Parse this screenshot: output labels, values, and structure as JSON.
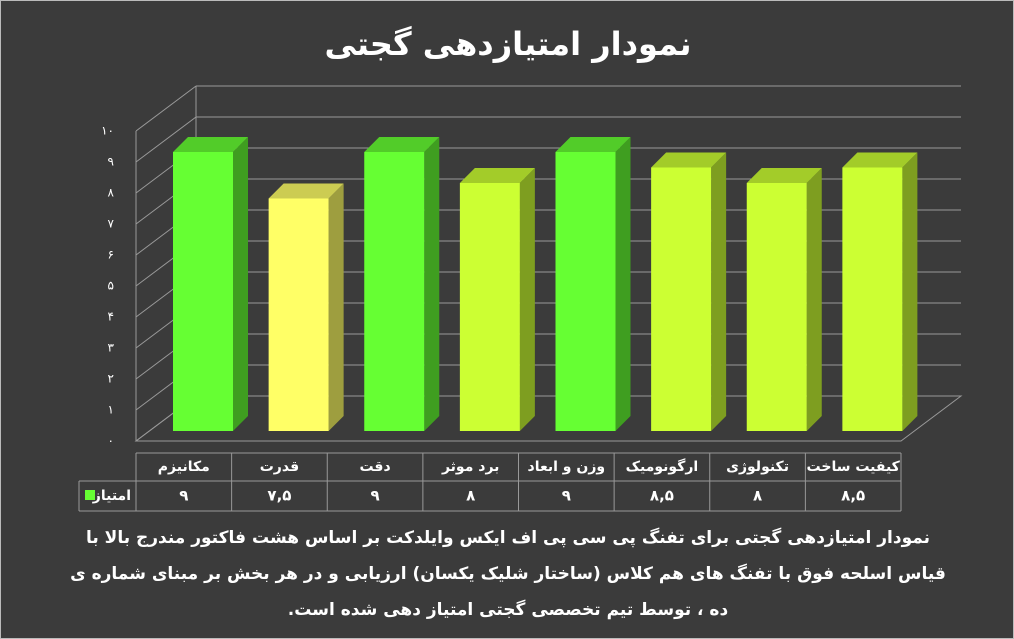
{
  "chart_data": {
    "type": "bar3d",
    "title": "نمودار امتیازدهی گجتی",
    "categories": [
      "مکانیزم",
      "قدرت",
      "دقت",
      "برد موثر",
      "وزن و ابعاد",
      "ارگونومیک",
      "تکنولوژی",
      "کیفیت ساخت"
    ],
    "series": [
      {
        "name": "امتیاز",
        "color": "#66ff33",
        "values": [
          9,
          7.5,
          9,
          8,
          9,
          8.5,
          8,
          8.5
        ],
        "value_labels": [
          "۹",
          "۷,۵",
          "۹",
          "۸",
          "۹",
          "۸,۵",
          "۸",
          "۸,۵"
        ],
        "colors": [
          "#66ff33",
          "#ffff66",
          "#66ff33",
          "#ccff33",
          "#66ff33",
          "#ccff33",
          "#ccff33",
          "#ccff33"
        ]
      }
    ],
    "ylim": [
      0,
      10
    ],
    "yticks": [
      {
        "value": 0,
        "label": "۰"
      },
      {
        "value": 1,
        "label": "۱"
      },
      {
        "value": 2,
        "label": "۲"
      },
      {
        "value": 3,
        "label": "۳"
      },
      {
        "value": 4,
        "label": "۴"
      },
      {
        "value": 5,
        "label": "۵"
      },
      {
        "value": 6,
        "label": "۶"
      },
      {
        "value": 7,
        "label": "۷"
      },
      {
        "value": 8,
        "label": "۸"
      },
      {
        "value": 9,
        "label": "۹"
      },
      {
        "value": 10,
        "label": "۱۰"
      }
    ],
    "grid": true
  },
  "caption": [
    "نمودار امتیازدهی گجتی برای تفنگ پی سی پی اف ایکس وایلدکت بر اساس هشت فاکتور مندرج بالا با",
    "قیاس اسلحه فوق با تفنگ های هم کلاس (ساختار شلیک یکسان) ارزیابی و در هر بخش بر مبنای شماره ی",
    "ده ، توسط تیم تخصصی گجتی امتیاز دهی شده است."
  ]
}
